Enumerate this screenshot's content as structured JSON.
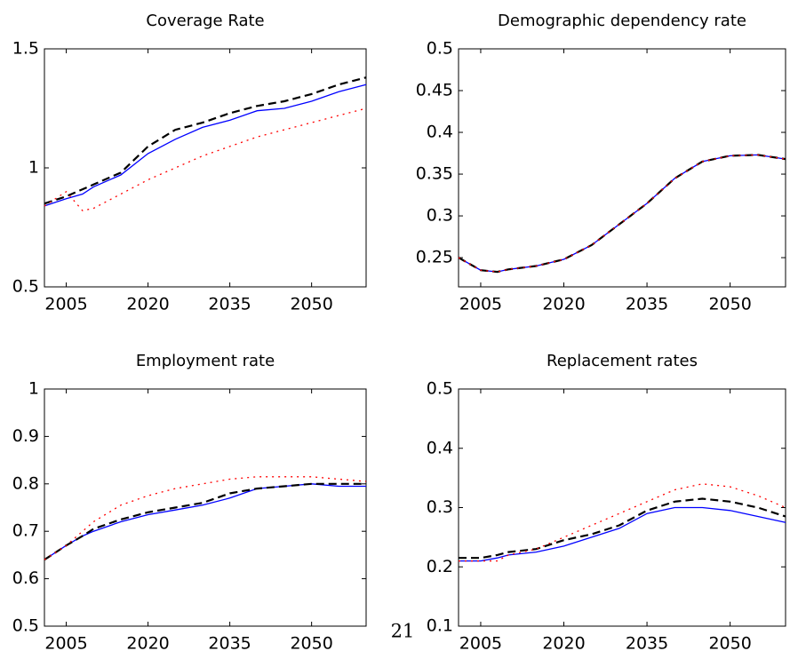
{
  "chart_data": [
    {
      "type": "line",
      "title": "Coverage Rate",
      "x": [
        2001,
        2005,
        2008,
        2010,
        2015,
        2020,
        2025,
        2030,
        2035,
        2040,
        2045,
        2050,
        2055,
        2060
      ],
      "xlim": [
        2001,
        2060
      ],
      "xticks": [
        2005,
        2020,
        2035,
        2050
      ],
      "ylim": [
        0.5,
        1.5
      ],
      "yticks": [
        0.5,
        1,
        1.5
      ],
      "series": [
        {
          "color": "#0000ff",
          "style": "solid",
          "values": [
            0.84,
            0.87,
            0.89,
            0.92,
            0.97,
            1.06,
            1.12,
            1.17,
            1.2,
            1.24,
            1.25,
            1.28,
            1.32,
            1.35
          ]
        },
        {
          "color": "#000000",
          "style": "dashed",
          "values": [
            0.85,
            0.88,
            0.91,
            0.93,
            0.98,
            1.09,
            1.16,
            1.19,
            1.23,
            1.26,
            1.28,
            1.31,
            1.35,
            1.38
          ]
        },
        {
          "color": "#ff0000",
          "style": "dotted",
          "values": [
            0.84,
            0.9,
            0.82,
            0.83,
            0.89,
            0.95,
            1.0,
            1.05,
            1.09,
            1.13,
            1.16,
            1.19,
            1.22,
            1.25
          ]
        }
      ]
    },
    {
      "type": "line",
      "title": "Demographic dependency rate",
      "x": [
        2001,
        2005,
        2008,
        2010,
        2015,
        2020,
        2025,
        2030,
        2035,
        2040,
        2045,
        2050,
        2055,
        2060
      ],
      "xlim": [
        2001,
        2060
      ],
      "xticks": [
        2005,
        2020,
        2035,
        2050
      ],
      "ylim": [
        0.215,
        0.5
      ],
      "yticks": [
        0.25,
        0.3,
        0.35,
        0.4,
        0.45,
        0.5
      ],
      "series": [
        {
          "color": "#0000ff",
          "style": "solid",
          "values": [
            0.25,
            0.235,
            0.233,
            0.236,
            0.24,
            0.248,
            0.265,
            0.29,
            0.315,
            0.345,
            0.365,
            0.372,
            0.373,
            0.368
          ]
        },
        {
          "color": "#000000",
          "style": "dashed",
          "values": [
            0.25,
            0.235,
            0.233,
            0.236,
            0.24,
            0.248,
            0.265,
            0.29,
            0.315,
            0.345,
            0.365,
            0.372,
            0.373,
            0.368
          ]
        },
        {
          "color": "#ff0000",
          "style": "dotted",
          "values": [
            0.25,
            0.235,
            0.233,
            0.236,
            0.24,
            0.248,
            0.265,
            0.29,
            0.315,
            0.345,
            0.365,
            0.372,
            0.373,
            0.368
          ]
        }
      ]
    },
    {
      "type": "line",
      "title": "Employment rate",
      "x": [
        2001,
        2005,
        2008,
        2010,
        2015,
        2020,
        2025,
        2030,
        2035,
        2040,
        2045,
        2050,
        2055,
        2060
      ],
      "xlim": [
        2001,
        2060
      ],
      "xticks": [
        2005,
        2020,
        2035,
        2050
      ],
      "ylim": [
        0.5,
        1
      ],
      "yticks": [
        0.5,
        0.6,
        0.7,
        0.8,
        0.9,
        1
      ],
      "series": [
        {
          "color": "#0000ff",
          "style": "solid",
          "values": [
            0.64,
            0.67,
            0.69,
            0.7,
            0.72,
            0.735,
            0.745,
            0.755,
            0.77,
            0.79,
            0.795,
            0.8,
            0.795,
            0.795
          ]
        },
        {
          "color": "#000000",
          "style": "dashed",
          "values": [
            0.64,
            0.67,
            0.69,
            0.705,
            0.725,
            0.74,
            0.75,
            0.76,
            0.78,
            0.79,
            0.795,
            0.8,
            0.8,
            0.8
          ]
        },
        {
          "color": "#ff0000",
          "style": "dotted",
          "values": [
            0.64,
            0.67,
            0.7,
            0.72,
            0.755,
            0.775,
            0.79,
            0.8,
            0.81,
            0.815,
            0.815,
            0.815,
            0.81,
            0.805
          ]
        }
      ]
    },
    {
      "type": "line",
      "title": "Replacement rates",
      "x": [
        2001,
        2005,
        2008,
        2010,
        2015,
        2020,
        2025,
        2030,
        2035,
        2040,
        2045,
        2050,
        2055,
        2060
      ],
      "xlim": [
        2001,
        2060
      ],
      "xticks": [
        2005,
        2020,
        2035,
        2050
      ],
      "ylim": [
        0.1,
        0.5
      ],
      "yticks": [
        0.1,
        0.2,
        0.3,
        0.4,
        0.5
      ],
      "series": [
        {
          "color": "#0000ff",
          "style": "solid",
          "values": [
            0.21,
            0.21,
            0.215,
            0.22,
            0.225,
            0.235,
            0.25,
            0.265,
            0.29,
            0.3,
            0.3,
            0.295,
            0.285,
            0.275
          ]
        },
        {
          "color": "#000000",
          "style": "dashed",
          "values": [
            0.215,
            0.215,
            0.22,
            0.225,
            0.23,
            0.245,
            0.255,
            0.27,
            0.295,
            0.31,
            0.315,
            0.31,
            0.3,
            0.285
          ]
        },
        {
          "color": "#ff0000",
          "style": "dotted",
          "values": [
            0.21,
            0.21,
            0.21,
            0.22,
            0.23,
            0.25,
            0.27,
            0.29,
            0.31,
            0.33,
            0.34,
            0.335,
            0.32,
            0.3
          ]
        }
      ]
    }
  ],
  "page_number": "21"
}
